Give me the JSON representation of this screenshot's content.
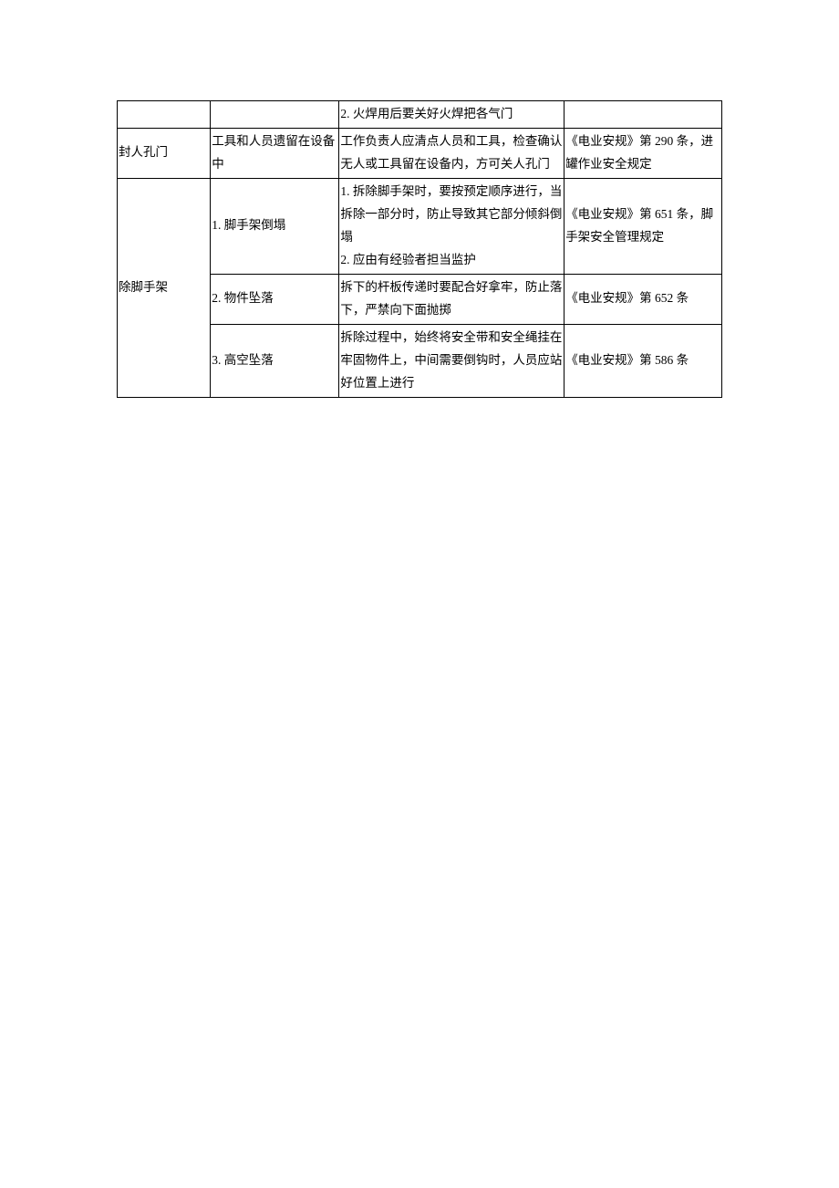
{
  "table": {
    "border_color": "#000000",
    "background_color": "#ffffff",
    "font_family": "SimSun",
    "font_size": 13.5,
    "line_height": 1.85,
    "columns": [
      {
        "width_percent": 14.5
      },
      {
        "width_percent": 20
      },
      {
        "width_percent": 35
      },
      {
        "width_percent": 24.5
      }
    ],
    "rows": [
      {
        "c1": "",
        "c2": "",
        "c3": "2.  火焊用后要关好火焊把各气门",
        "c4": ""
      },
      {
        "c1": "封人孔门",
        "c2": "工具和人员遗留在设备中",
        "c3": "工作负责人应清点人员和工具，检查确认无人或工具留在设备内，方可关人孔门",
        "c4": "《电业安规》第 290 条，进罐作业安全规定"
      },
      {
        "c1": "除脚手架",
        "c2": "1. 脚手架倒塌",
        "c3": "1.  拆除脚手架时，要按预定顺序进行，当拆除一部分时，防止导致其它部分倾斜倒塌\n2.  应由有经验者担当监护",
        "c4": "《电业安规》第 651 条，脚手架安全管理规定"
      },
      {
        "c2": "2. 物件坠落",
        "c3": "拆下的杆板传递时要配合好拿牢，防止落下，严禁向下面抛掷",
        "c4": "《电业安规》第 652 条"
      },
      {
        "c2": "3. 高空坠落",
        "c3": "拆除过程中，始终将安全带和安全绳挂在牢固物件上，中间需要倒钩时，人员应站好位置上进行",
        "c4": "《电业安规》第 586 条"
      }
    ]
  }
}
